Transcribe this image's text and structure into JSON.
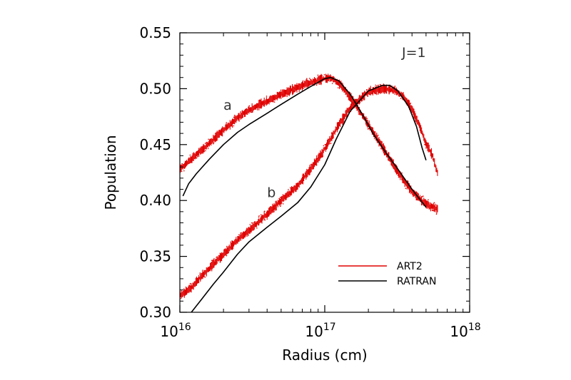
{
  "chart_data": {
    "type": "scatter",
    "xlabel": "Radius (cm)",
    "ylabel": "Population",
    "xscale": "log",
    "xlim": [
      1e+16,
      1e+18
    ],
    "ylim": [
      0.3,
      0.55
    ],
    "x_ticks": [
      {
        "value": 1e+16,
        "base": "10",
        "exp": "16"
      },
      {
        "value": 1e+17,
        "base": "10",
        "exp": "17"
      },
      {
        "value": 1e+18,
        "base": "10",
        "exp": "18"
      }
    ],
    "y_ticks": [
      {
        "value": 0.3,
        "label": "0.30"
      },
      {
        "value": 0.35,
        "label": "0.35"
      },
      {
        "value": 0.4,
        "label": "0.40"
      },
      {
        "value": 0.45,
        "label": "0.45"
      },
      {
        "value": 0.5,
        "label": "0.50"
      },
      {
        "value": 0.55,
        "label": "0.55"
      }
    ],
    "annotation": "J=1",
    "curve_labels": [
      {
        "text": "a",
        "x": 2e+16,
        "y": 0.481
      },
      {
        "text": "b",
        "x": 4e+16,
        "y": 0.403
      }
    ],
    "legend": {
      "position": "bottom-right",
      "entries": [
        {
          "name": "ART2",
          "color": "#e00000"
        },
        {
          "name": "RATRAN",
          "color": "#000000"
        }
      ]
    },
    "series": [
      {
        "name": "ART2",
        "curve": "a",
        "style": "points",
        "color": "#e00000",
        "spread": 0.006,
        "x": [
          1e+16,
          1.2e+16,
          1.5e+16,
          2e+16,
          2.5e+16,
          3e+16,
          4e+16,
          5e+16,
          6.5e+16,
          8e+16,
          1e+17,
          1.1e+17,
          1.3e+17,
          1.6e+17,
          2e+17,
          2.5e+17,
          3e+17,
          3.5e+17,
          4e+17,
          5e+17,
          6e+17
        ],
        "y": [
          0.428,
          0.437,
          0.448,
          0.463,
          0.474,
          0.481,
          0.489,
          0.495,
          0.501,
          0.506,
          0.509,
          0.51,
          0.503,
          0.487,
          0.468,
          0.448,
          0.431,
          0.418,
          0.408,
          0.397,
          0.392
        ]
      },
      {
        "name": "ART2",
        "curve": "b",
        "style": "points",
        "color": "#e00000",
        "spread": 0.006,
        "x": [
          1e+16,
          1.2e+16,
          1.5e+16,
          2e+16,
          2.5e+16,
          3e+16,
          4e+16,
          5e+16,
          6.5e+16,
          8e+16,
          1e+17,
          1.2e+17,
          1.5e+17,
          2e+17,
          2.5e+17,
          3e+17,
          3.5e+17,
          4e+17,
          4.5e+17,
          5e+17,
          5.5e+17,
          6e+17
        ],
        "y": [
          0.315,
          0.322,
          0.336,
          0.352,
          0.365,
          0.373,
          0.388,
          0.4,
          0.413,
          0.428,
          0.446,
          0.464,
          0.483,
          0.497,
          0.5,
          0.499,
          0.493,
          0.482,
          0.467,
          0.451,
          0.441,
          0.425
        ]
      },
      {
        "name": "RATRAN",
        "curve": "a",
        "style": "line",
        "color": "#000000",
        "x": [
          1.05e+16,
          1.15e+16,
          1.3e+16,
          1.6e+16,
          2e+16,
          2.5e+16,
          3e+16,
          4e+16,
          5e+16,
          6.5e+16,
          8e+16,
          1e+17,
          1.1e+17,
          1.25e+17,
          1.5e+17,
          1.8e+17,
          2.2e+17,
          2.7e+17,
          3.2e+17,
          4e+17,
          5e+17
        ],
        "y": [
          0.404,
          0.415,
          0.424,
          0.437,
          0.45,
          0.461,
          0.468,
          0.478,
          0.486,
          0.495,
          0.502,
          0.509,
          0.51,
          0.507,
          0.495,
          0.478,
          0.458,
          0.441,
          0.428,
          0.41,
          0.394
        ]
      },
      {
        "name": "RATRAN",
        "curve": "b",
        "style": "line",
        "color": "#000000",
        "x": [
          1.2e+16,
          1.4e+16,
          1.7e+16,
          2e+16,
          2.5e+16,
          3e+16,
          4e+16,
          5e+16,
          6.5e+16,
          8e+16,
          1e+17,
          1.2e+17,
          1.5e+17,
          2e+17,
          2.5e+17,
          2.8e+17,
          3.2e+17,
          3.8e+17,
          4.3e+17,
          4.7e+17,
          5e+17
        ],
        "y": [
          0.3,
          0.311,
          0.325,
          0.336,
          0.352,
          0.363,
          0.376,
          0.386,
          0.398,
          0.412,
          0.432,
          0.455,
          0.48,
          0.498,
          0.503,
          0.503,
          0.498,
          0.484,
          0.466,
          0.447,
          0.436
        ]
      }
    ]
  }
}
